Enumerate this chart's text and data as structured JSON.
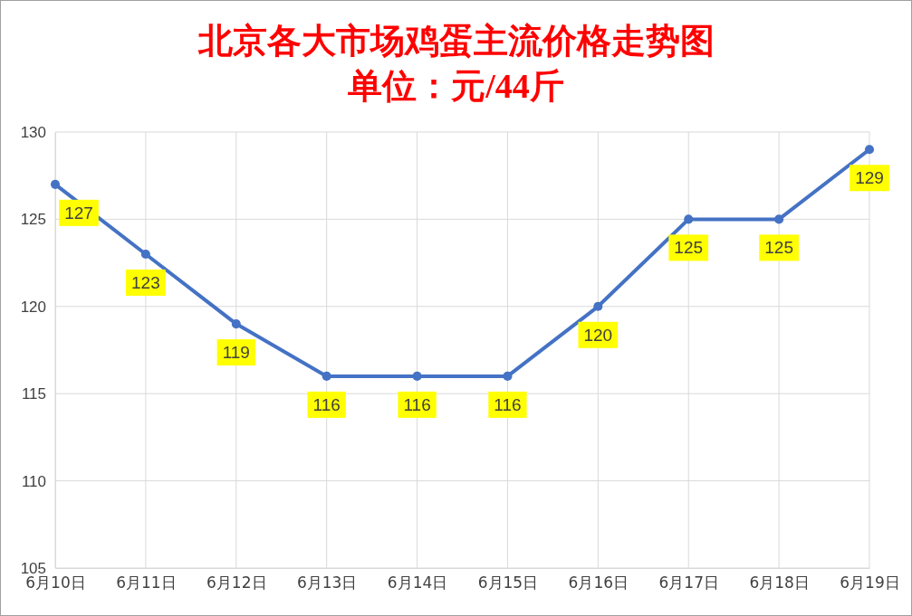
{
  "chart_data": {
    "type": "line",
    "title": "北京各大市场鸡蛋主流价格走势图",
    "subtitle": "单位：元/44斤",
    "categories": [
      "6月10日",
      "6月11日",
      "6月12日",
      "6月13日",
      "6月14日",
      "6月15日",
      "6月16日",
      "6月17日",
      "6月18日",
      "6月19日"
    ],
    "series": [
      {
        "color": "#4472c4",
        "values": [
          127,
          123,
          119,
          116,
          116,
          116,
          120,
          125,
          125,
          129
        ]
      }
    ],
    "ylim": [
      105,
      130
    ],
    "yticks": [
      105,
      110,
      115,
      120,
      125,
      130
    ],
    "grid": true,
    "marker": "circle",
    "line_style": "solid",
    "data_labels": true
  }
}
